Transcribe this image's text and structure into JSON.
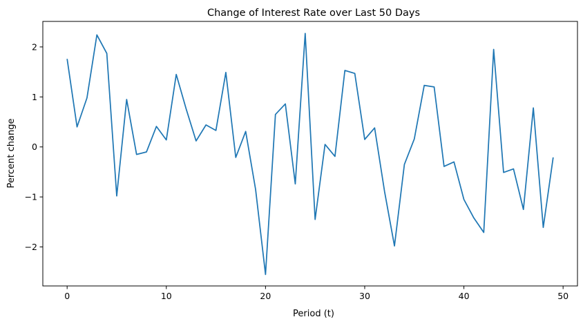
{
  "chart_data": {
    "type": "line",
    "title": "Change of Interest Rate over Last 50 Days",
    "xlabel": "Period (t)",
    "ylabel": "Percent change",
    "xlim": [
      -2.45,
      51.45
    ],
    "ylim": [
      -2.78,
      2.51
    ],
    "xticks": [
      0,
      10,
      20,
      30,
      40,
      50
    ],
    "xtick_labels": [
      "0",
      "10",
      "20",
      "30",
      "40",
      "50"
    ],
    "yticks": [
      -2,
      -1,
      0,
      1,
      2
    ],
    "ytick_labels": [
      "−2",
      "−1",
      "0",
      "1",
      "2"
    ],
    "grid": false,
    "legend": "none",
    "color": "#1f77b4",
    "x": [
      0,
      1,
      2,
      3,
      4,
      5,
      6,
      7,
      8,
      9,
      10,
      11,
      12,
      13,
      14,
      15,
      16,
      17,
      18,
      19,
      20,
      21,
      22,
      23,
      24,
      25,
      26,
      27,
      28,
      29,
      30,
      31,
      32,
      33,
      34,
      35,
      36,
      37,
      38,
      39,
      40,
      41,
      42,
      43,
      44,
      45,
      46,
      47,
      48,
      49
    ],
    "series": [
      {
        "values": [
          1.76,
          0.4,
          0.98,
          2.24,
          1.87,
          -0.98,
          0.95,
          -0.15,
          -0.1,
          0.41,
          0.14,
          1.45,
          0.76,
          0.12,
          0.44,
          0.33,
          1.49,
          -0.21,
          0.31,
          -0.85,
          -2.55,
          0.65,
          0.86,
          -0.74,
          2.27,
          -1.45,
          0.05,
          -0.19,
          1.53,
          1.47,
          0.15,
          0.38,
          -0.89,
          -1.98,
          -0.35,
          0.16,
          1.23,
          1.2,
          -0.39,
          -0.3,
          -1.05,
          -1.42,
          -1.71,
          1.95,
          -0.51,
          -0.44,
          -1.25,
          0.78,
          -1.61,
          -0.21
        ]
      }
    ]
  }
}
